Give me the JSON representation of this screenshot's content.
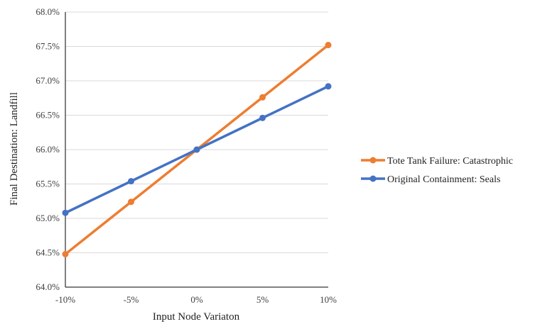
{
  "chart_data": {
    "type": "line",
    "title": "",
    "xlabel": "Input Node Variaton",
    "ylabel": "Final Destination: Landfill",
    "categories": [
      "-10%",
      "-5%",
      "0%",
      "5%",
      "10%"
    ],
    "ylim": [
      64.0,
      68.0
    ],
    "yticks": [
      "64.0%",
      "64.5%",
      "65.0%",
      "65.5%",
      "66.0%",
      "66.5%",
      "67.0%",
      "67.5%",
      "68.0%"
    ],
    "grid": "horizontal",
    "legend_position": "right",
    "series": [
      {
        "name": "Tote Tank Failure: Catastrophic",
        "color": "#ED7D31",
        "values": [
          64.48,
          65.24,
          66.0,
          66.76,
          67.52
        ]
      },
      {
        "name": "Original Containment: Seals",
        "color": "#4472C4",
        "values": [
          65.08,
          65.54,
          66.0,
          66.46,
          66.92
        ]
      }
    ]
  }
}
